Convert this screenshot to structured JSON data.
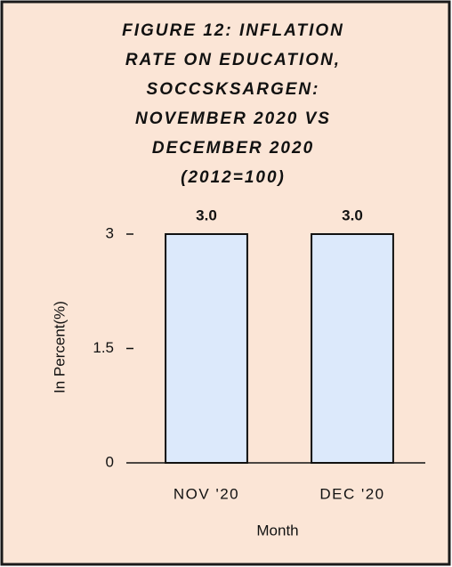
{
  "chart_data": {
    "type": "bar",
    "title": [
      "FIGURE 12: INFLATION",
      "RATE ON EDUCATION,",
      "SOCCSKSARGEN:",
      "NOVEMBER 2020 VS",
      "DECEMBER 2020",
      "(2012=100)"
    ],
    "categories": [
      "NOV '20",
      "DEC '20"
    ],
    "values": [
      3.0,
      3.0
    ],
    "value_labels": [
      "3.0",
      "3.0"
    ],
    "color": "#dce9fb",
    "ylim": [
      0,
      3
    ],
    "yticks": [
      0,
      1.5,
      3
    ],
    "y_label": "In Percent(%)",
    "x_label": "Month",
    "grid": false
  }
}
